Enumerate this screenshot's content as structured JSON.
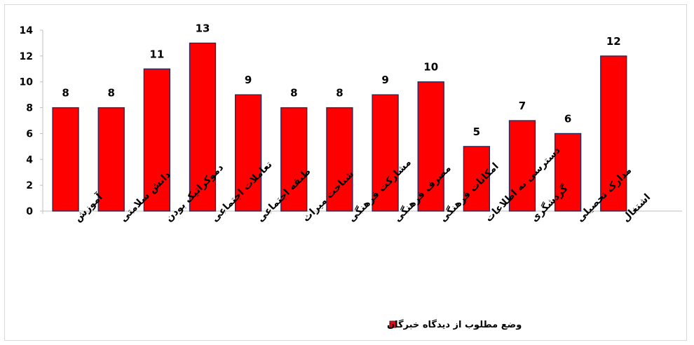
{
  "chart_data": {
    "type": "bar",
    "categories": [
      "آموزش",
      "دانش سلامتی",
      "دموکراتیک بودن",
      "تعاملات اجتماعی",
      "طبقه اجتماعی",
      "شناخت میراث",
      "مشارکت فرهنگی",
      "مصرف فرهنگی",
      "امکانات فرهنگی",
      "دسترسی به اطلاعات",
      "گردشگری",
      "مدارک تحصیلی",
      "اشتغال"
    ],
    "series": [
      {
        "name": "وضع مطلوب از دیدگاه خبرگان",
        "values": [
          8,
          8,
          11,
          13,
          9,
          8,
          8,
          9,
          10,
          5,
          7,
          6,
          12
        ]
      }
    ],
    "ylim": [
      0,
      14
    ],
    "yticks": [
      0,
      2,
      4,
      6,
      8,
      10,
      12,
      14
    ],
    "grid": false,
    "legend": "bottom",
    "data_labels": true,
    "colors": {
      "bar_fill": "#ff0000",
      "bar_stroke": "#1f2a5a",
      "axis": "#bfbfbf"
    }
  }
}
